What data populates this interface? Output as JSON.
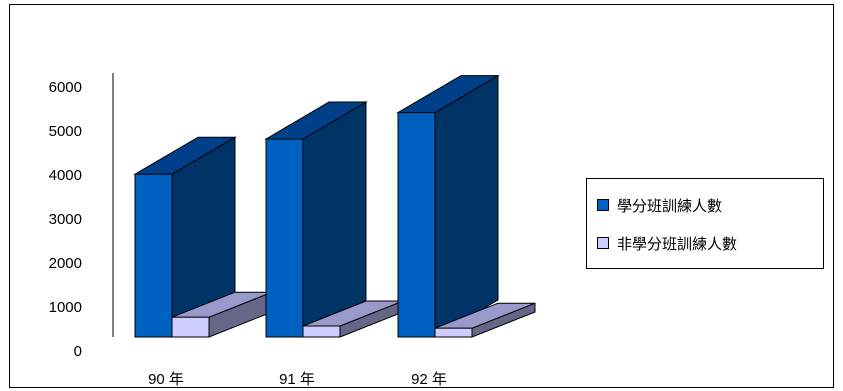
{
  "chart_data": {
    "type": "bar",
    "categories": [
      "90 年",
      "91 年",
      "92 年"
    ],
    "series": [
      {
        "name": "學分班訓練人數",
        "values": [
          3700,
          4500,
          5100
        ]
      },
      {
        "name": "非學分班訓練人數",
        "values": [
          450,
          250,
          200
        ]
      }
    ],
    "ylim": [
      0,
      6000
    ],
    "yticks": [
      0,
      1000,
      2000,
      3000,
      4000,
      5000,
      6000
    ],
    "title": "",
    "xlabel": "",
    "ylabel": "",
    "grid": false,
    "legend_position": "right",
    "colors": {
      "series1_front": "#0060c0",
      "series1_side": "#003366",
      "series1_top": "#00408a",
      "series2_front": "#ccccff",
      "series2_side": "#666688",
      "series2_top": "#9999cc"
    }
  }
}
